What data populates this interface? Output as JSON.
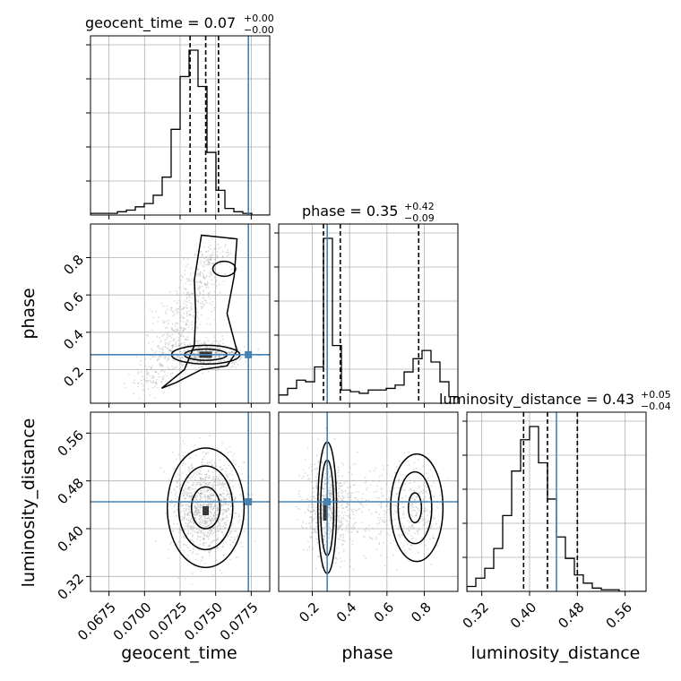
{
  "chart_data": {
    "type": "corner",
    "parameters": [
      "geocent_time",
      "phase",
      "luminosity_distance"
    ],
    "injection": {
      "geocent_time": 0.0773,
      "phase": 0.28,
      "luminosity_distance": 0.445
    },
    "titles": [
      {
        "main": "geocent_time = 0.07",
        "sup": "+0.00",
        "sub": "−0.00"
      },
      {
        "main": "phase = 0.35",
        "sup": "+0.42",
        "sub": "−0.09"
      },
      {
        "main": "luminosity_distance = 0.43",
        "sup": "+0.05",
        "sub": "−0.04"
      }
    ],
    "axis_labels": {
      "geocent_time": "geocent_time",
      "phase": "phase",
      "luminosity_distance": "luminosity_distance"
    },
    "ticks": {
      "geocent_time": [
        "0.0675",
        "0.0700",
        "0.0725",
        "0.0750",
        "0.0775"
      ],
      "phase": [
        "0.2",
        "0.4",
        "0.6",
        "0.8"
      ],
      "luminosity_distance": [
        "0.32",
        "0.40",
        "0.48",
        "0.56"
      ]
    },
    "ranges": {
      "geocent_time": [
        0.0662,
        0.0788
      ],
      "phase": [
        0.02,
        0.98
      ],
      "luminosity_distance": [
        0.295,
        0.595
      ]
    },
    "quantiles": {
      "geocent_time": [
        0.0732,
        0.0743,
        0.0752
      ],
      "phase": [
        0.26,
        0.35,
        0.77
      ],
      "luminosity_distance": [
        0.39,
        0.43,
        0.48
      ]
    },
    "histograms": {
      "geocent_time": {
        "edges_start": 0.0662,
        "bin_width": 0.00063,
        "values": [
          0.01,
          0.01,
          0.01,
          0.02,
          0.03,
          0.05,
          0.07,
          0.12,
          0.23,
          0.52,
          0.84,
          1.0,
          0.78,
          0.38,
          0.15,
          0.04,
          0.02,
          0.01,
          0.0,
          0.0
        ]
      },
      "phase": {
        "edges_start": 0.02,
        "bin_width": 0.048,
        "values": [
          0.05,
          0.09,
          0.14,
          0.13,
          0.22,
          1.0,
          0.35,
          0.08,
          0.07,
          0.06,
          0.08,
          0.08,
          0.09,
          0.11,
          0.19,
          0.27,
          0.32,
          0.25,
          0.13,
          0.04
        ]
      },
      "luminosity_distance": {
        "edges_start": 0.295,
        "bin_width": 0.015,
        "values": [
          0.03,
          0.08,
          0.14,
          0.26,
          0.46,
          0.73,
          0.92,
          1.0,
          0.78,
          0.56,
          0.33,
          0.2,
          0.1,
          0.05,
          0.02,
          0.01,
          0.01,
          0.0,
          0.0,
          0.0
        ]
      }
    },
    "grid": true
  },
  "colors": {
    "injection": "#4682b4",
    "quantile": "#000000",
    "grid": "#b0b0b0",
    "samples": "#9a9a9a"
  }
}
